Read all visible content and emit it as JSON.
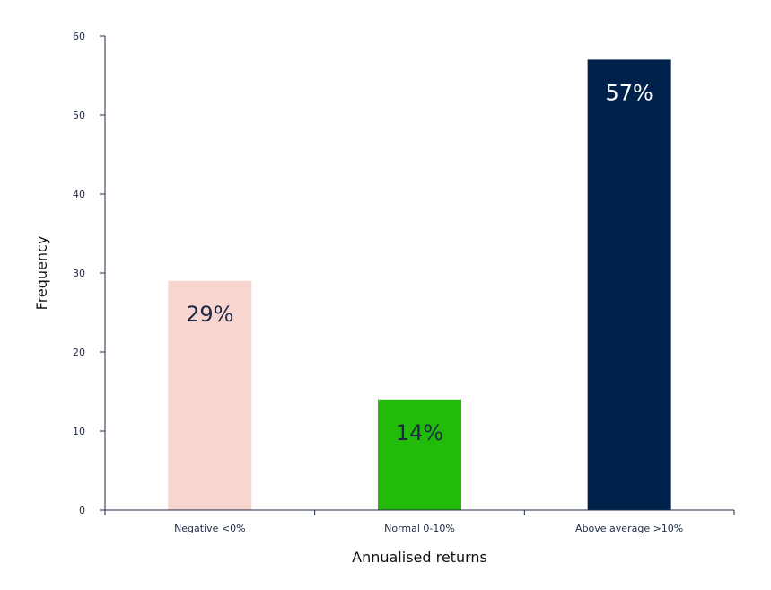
{
  "chart_data": {
    "type": "bar",
    "title": "",
    "xlabel": "Annualised returns",
    "ylabel": "Frequency",
    "categories": [
      "Negative <0%",
      "Normal 0-10%",
      "Above average >10%"
    ],
    "values": [
      29,
      14,
      57
    ],
    "data_labels": [
      "29%",
      "14%",
      "57%"
    ],
    "colors": [
      "#f9d5d0",
      "#22bb0a",
      "#00214a"
    ],
    "label_colors": [
      "#1c2a44",
      "#1c2a44",
      "#ffffff"
    ],
    "ylim": [
      0,
      60
    ],
    "yticks": [
      0,
      10,
      20,
      30,
      40,
      50,
      60
    ],
    "grid": false,
    "legend": "none"
  }
}
